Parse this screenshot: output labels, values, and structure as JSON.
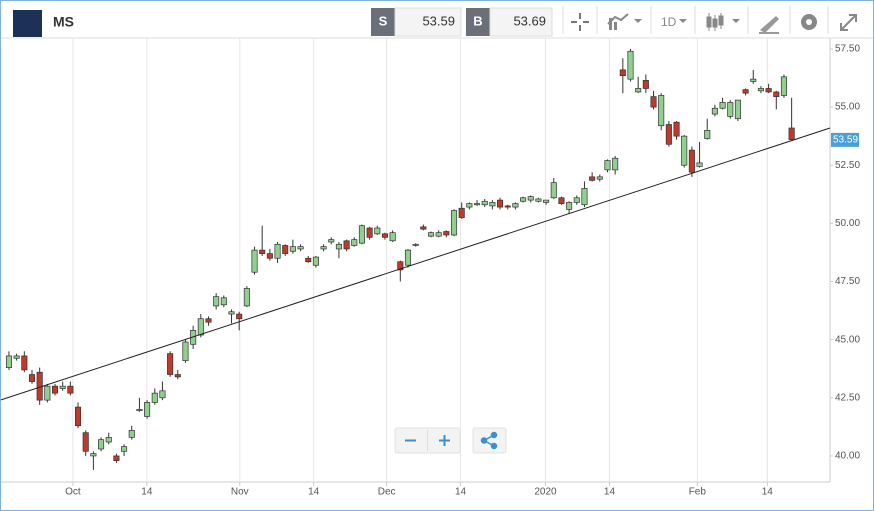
{
  "header": {
    "symbol": "MS",
    "sell": {
      "label": "S",
      "price": 53.59
    },
    "buy": {
      "label": "B",
      "price": 53.69
    },
    "interval": "1D"
  },
  "chart_data": {
    "type": "candlestick",
    "x": [
      0,
      1,
      2,
      3,
      4,
      5,
      6,
      7,
      8,
      9,
      10,
      11,
      12,
      13,
      14,
      15,
      16,
      17,
      18,
      19,
      20,
      21,
      22,
      23,
      24,
      25,
      26,
      27,
      28,
      29,
      30,
      31,
      32,
      33,
      34,
      35,
      36,
      37,
      38,
      39,
      40,
      41,
      42,
      43,
      44,
      45,
      46,
      47,
      48,
      49,
      50,
      51,
      52,
      53,
      54,
      55,
      56,
      57,
      58,
      59,
      60,
      61,
      62,
      63,
      64,
      65,
      66,
      67,
      68,
      69,
      70,
      71,
      72,
      73,
      74,
      75,
      76,
      77,
      78,
      79,
      80,
      81,
      82,
      83,
      84,
      85,
      86,
      87,
      88,
      89,
      90,
      91,
      92,
      93,
      94,
      95,
      96,
      97,
      98,
      99,
      100,
      101,
      102
    ],
    "open": [
      43.8,
      44.2,
      44.3,
      43.5,
      43.6,
      42.4,
      43.0,
      42.9,
      43.0,
      42.1,
      41.0,
      40.0,
      40.3,
      40.6,
      40.0,
      40.2,
      40.8,
      41.95,
      41.7,
      42.3,
      42.5,
      44.4,
      43.5,
      44.1,
      44.8,
      45.2,
      45.9,
      46.45,
      46.5,
      46.1,
      46.1,
      46.45,
      47.9,
      48.85,
      48.7,
      48.5,
      49.05,
      48.8,
      48.9,
      48.5,
      48.2,
      48.9,
      49.2,
      48.9,
      49.25,
      49.05,
      49.15,
      49.8,
      49.55,
      49.55,
      49.25,
      48.35,
      48.2,
      49.05,
      49.85,
      49.45,
      49.45,
      49.65,
      49.5,
      50.65,
      50.7,
      50.8,
      50.8,
      50.75,
      51.0,
      50.75,
      50.7,
      50.95,
      51.0,
      50.95,
      50.9,
      51.1,
      51.1,
      50.6,
      50.9,
      50.8,
      52.0,
      51.9,
      52.3,
      52.3,
      56.6,
      56.2,
      55.65,
      56.15,
      55.45,
      54.2,
      54.25,
      54.35,
      52.5,
      53.15,
      52.45,
      53.65,
      54.7,
      54.95,
      54.6,
      54.5,
      55.75,
      56.1,
      55.7,
      55.8,
      55.65,
      55.5,
      54.1
    ],
    "high": [
      44.5,
      44.4,
      44.5,
      43.7,
      43.8,
      43.1,
      43.1,
      43.2,
      43.2,
      42.3,
      41.1,
      40.2,
      40.8,
      41.0,
      40.1,
      40.5,
      41.3,
      42.5,
      42.4,
      42.9,
      43.2,
      44.5,
      43.7,
      45.0,
      45.6,
      46.1,
      46.0,
      47.0,
      46.9,
      46.3,
      46.2,
      47.3,
      49.0,
      49.9,
      48.9,
      49.2,
      49.1,
      49.3,
      49.1,
      48.6,
      48.6,
      49.1,
      49.4,
      49.2,
      49.3,
      49.4,
      49.95,
      49.85,
      49.9,
      49.6,
      49.7,
      48.4,
      48.9,
      49.15,
      49.95,
      49.65,
      49.7,
      49.7,
      50.6,
      50.9,
      50.9,
      51.0,
      51.05,
      51.0,
      51.1,
      50.8,
      50.9,
      51.15,
      51.2,
      51.1,
      51.0,
      51.95,
      51.15,
      50.95,
      51.2,
      51.8,
      52.2,
      52.1,
      52.75,
      52.9,
      57.1,
      57.5,
      56.3,
      56.4,
      55.7,
      55.6,
      54.4,
      54.4,
      53.8,
      53.3,
      53.5,
      54.5,
      55.1,
      55.4,
      55.3,
      55.3,
      55.8,
      56.6,
      55.9,
      56.0,
      55.7,
      56.4,
      55.4
    ],
    "low": [
      43.7,
      44.1,
      43.6,
      43.1,
      42.2,
      42.3,
      42.6,
      42.8,
      42.6,
      41.2,
      40.0,
      39.4,
      40.2,
      40.5,
      39.7,
      40.0,
      40.7,
      41.9,
      41.6,
      42.2,
      42.4,
      43.4,
      43.3,
      44.0,
      44.6,
      45.1,
      45.6,
      46.3,
      46.4,
      45.7,
      45.4,
      46.4,
      47.8,
      48.6,
      48.4,
      48.3,
      48.6,
      48.7,
      48.8,
      48.3,
      48.1,
      48.8,
      49.1,
      48.5,
      48.8,
      49.0,
      49.1,
      49.3,
      49.5,
      49.3,
      49.2,
      47.5,
      48.1,
      49.0,
      49.7,
      49.4,
      49.4,
      49.4,
      49.45,
      50.2,
      50.6,
      50.75,
      50.7,
      50.6,
      50.6,
      50.6,
      50.6,
      50.9,
      50.9,
      50.9,
      50.8,
      51.05,
      50.8,
      50.4,
      50.8,
      50.7,
      51.8,
      51.8,
      52.2,
      52.1,
      55.6,
      56.1,
      55.6,
      55.6,
      54.9,
      54.0,
      53.3,
      53.6,
      52.4,
      52.0,
      52.4,
      53.6,
      54.6,
      54.9,
      54.5,
      54.4,
      55.5,
      56.0,
      55.6,
      55.6,
      54.9,
      55.4,
      53.6
    ],
    "close": [
      44.3,
      44.3,
      43.7,
      43.2,
      42.4,
      43.0,
      42.7,
      43.0,
      42.7,
      41.3,
      40.2,
      40.1,
      40.7,
      40.8,
      39.8,
      40.4,
      41.1,
      42.0,
      42.3,
      42.7,
      42.8,
      43.5,
      43.4,
      44.9,
      45.4,
      45.9,
      45.75,
      46.85,
      46.8,
      46.2,
      45.9,
      47.2,
      48.85,
      48.7,
      48.5,
      49.1,
      48.7,
      49.0,
      49.0,
      48.35,
      48.55,
      49.0,
      49.3,
      49.1,
      48.9,
      49.3,
      49.9,
      49.4,
      49.8,
      49.4,
      49.6,
      48.0,
      48.85,
      49.1,
      49.75,
      49.6,
      49.6,
      49.5,
      50.55,
      50.25,
      50.85,
      50.85,
      50.95,
      50.9,
      50.7,
      50.7,
      50.85,
      51.1,
      51.15,
      51.05,
      51.0,
      51.75,
      50.85,
      50.9,
      51.1,
      51.5,
      51.85,
      52.0,
      52.7,
      52.8,
      56.35,
      57.4,
      55.8,
      55.8,
      55.0,
      55.5,
      53.4,
      53.75,
      53.75,
      52.2,
      52.6,
      54.0,
      54.95,
      55.2,
      55.2,
      55.3,
      55.6,
      56.2,
      55.8,
      55.65,
      55.45,
      56.3,
      53.6
    ],
    "up_color": "#8fd08f",
    "down_color": "#c0392b",
    "grid_x": true,
    "xlim": [
      -1.04,
      107.0
    ],
    "xticks": [
      {
        "value": 8.33,
        "label": "Oct"
      },
      {
        "value": 17.97,
        "label": "14"
      },
      {
        "value": 30.08,
        "label": "Nov"
      },
      {
        "value": 39.71,
        "label": "14"
      },
      {
        "value": 49.22,
        "label": "Dec"
      },
      {
        "value": 58.85,
        "label": "14"
      },
      {
        "value": 69.92,
        "label": "2020"
      },
      {
        "value": 78.26,
        "label": "14"
      },
      {
        "value": 89.71,
        "label": "Feb"
      },
      {
        "value": 98.83,
        "label": "14"
      }
    ],
    "ylim": [
      38.88,
      57.97
    ],
    "yticks": [
      {
        "value": 40,
        "label": "40.00"
      },
      {
        "value": 42.5,
        "label": "42.50"
      },
      {
        "value": 45,
        "label": "45.00"
      },
      {
        "value": 47.5,
        "label": "47.50"
      },
      {
        "value": 50,
        "label": "50.00"
      },
      {
        "value": 52.5,
        "label": "52.50"
      },
      {
        "value": 55,
        "label": "55.00"
      },
      {
        "value": 57.5,
        "label": "57.50"
      }
    ],
    "trendline": [
      42.41,
      54.1
    ],
    "last_price": 53.59
  }
}
